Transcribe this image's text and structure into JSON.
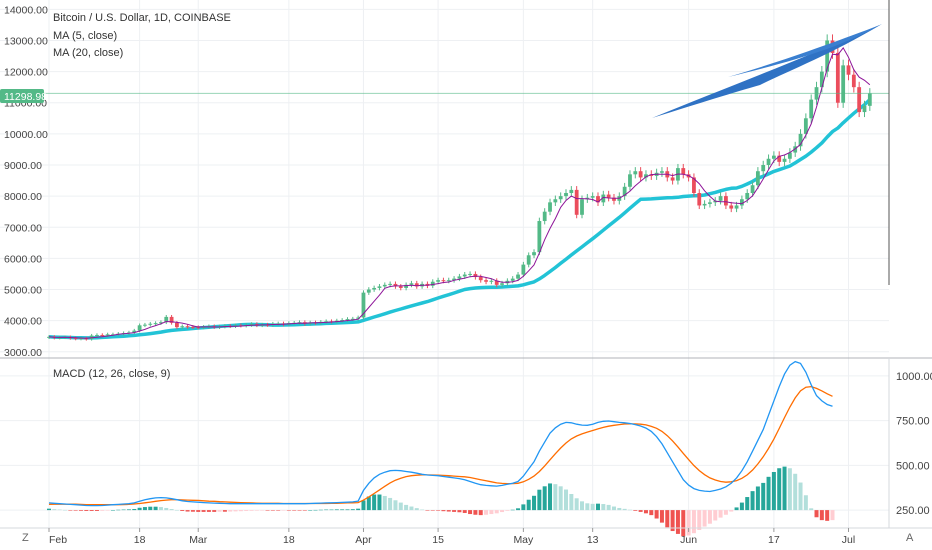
{
  "colors": {
    "up": "#53b987",
    "down": "#eb4d5c",
    "ma5": "#8e1599",
    "ma20": "#22c3d6",
    "macd": "#2196f3",
    "signal": "#ff6d00",
    "hist_up_strong": "#26a69a",
    "hist_up_weak": "#b2dfdb",
    "hist_down_strong": "#ef5350",
    "hist_down_weak": "#ffcdd2",
    "price_line": "#53b987",
    "shape": "#2f72c4"
  },
  "legend": {
    "title": "Bitcoin / U.S. Dollar, 1D, COINBASE",
    "ma5": "MA (5, close)",
    "ma20": "MA (20, close)",
    "macd": "MACD (12, 26, close, 9)"
  },
  "price_tag": "11298.98",
  "corner_left": "Z",
  "corner_right": "A",
  "chart_data": [
    {
      "type": "candlestick",
      "title": "Bitcoin / U.S. Dollar, 1D, COINBASE",
      "ylim": [
        2800,
        14300
      ],
      "ytick_labels": [
        "3000.00",
        "4000.00",
        "5000.00",
        "6000.00",
        "7000.00",
        "8000.00",
        "9000.00",
        "10000.00",
        "11000.00",
        "12000.00",
        "13000.00",
        "14000.00"
      ],
      "ytick_values": [
        3000,
        4000,
        5000,
        6000,
        7000,
        8000,
        9000,
        10000,
        11000,
        12000,
        13000,
        14000
      ],
      "x_labels": [
        "Feb",
        "18",
        "Mar",
        "18",
        "Apr",
        "15",
        "May",
        "13",
        "Jun",
        "17",
        "Jul"
      ],
      "x_label_days": [
        0,
        17,
        28,
        45,
        59,
        73,
        89,
        102,
        120,
        136,
        150
      ],
      "current_price": 11298.98,
      "close": [
        3480,
        3450,
        3460,
        3470,
        3440,
        3420,
        3430,
        3410,
        3520,
        3540,
        3530,
        3560,
        3560,
        3580,
        3600,
        3620,
        3680,
        3850,
        3870,
        3900,
        3920,
        3950,
        4120,
        3930,
        3790,
        3820,
        3800,
        3790,
        3780,
        3800,
        3820,
        3790,
        3810,
        3830,
        3820,
        3850,
        3840,
        3860,
        3890,
        3850,
        3870,
        3860,
        3900,
        3910,
        3880,
        3920,
        3930,
        3950,
        3900,
        3940,
        3930,
        3960,
        3980,
        3970,
        4000,
        4020,
        4050,
        4060,
        4100,
        4900,
        5000,
        5050,
        5100,
        5150,
        5180,
        5100,
        5050,
        5150,
        5200,
        5100,
        5180,
        5120,
        5250,
        5300,
        5280,
        5300,
        5350,
        5420,
        5480,
        5500,
        5400,
        5300,
        5250,
        5280,
        5150,
        5200,
        5280,
        5350,
        5480,
        5800,
        6100,
        6200,
        7200,
        7500,
        7800,
        7900,
        8000,
        8100,
        8200,
        7400,
        7900,
        7950,
        8000,
        7800,
        8050,
        7950,
        7850,
        8000,
        8300,
        8700,
        8800,
        8600,
        8700,
        8650,
        8750,
        8800,
        8600,
        8500,
        8900,
        8700,
        8600,
        8100,
        7700,
        7750,
        7800,
        7850,
        8000,
        7700,
        7600,
        7700,
        7900,
        8100,
        8350,
        8800,
        9000,
        9200,
        9300,
        9100,
        9200,
        9400,
        9600,
        10000,
        10500,
        11100,
        11500,
        12000,
        13000,
        12600,
        11000,
        12200,
        11900,
        11500,
        10700,
        10900,
        11298.98
      ],
      "ma5": [
        3480,
        3465,
        3463,
        3465,
        3460,
        3448,
        3444,
        3436,
        3448,
        3464,
        3480,
        3508,
        3534,
        3562,
        3576,
        3592,
        3616,
        3666,
        3720,
        3786,
        3842,
        3898,
        3972,
        3966,
        3942,
        3922,
        3884,
        3830,
        3796,
        3798,
        3798,
        3796,
        3800,
        3810,
        3814,
        3822,
        3826,
        3840,
        3852,
        3858,
        3864,
        3868,
        3876,
        3878,
        3884,
        3896,
        3908,
        3920,
        3916,
        3928,
        3930,
        3936,
        3942,
        3956,
        3968,
        3986,
        4004,
        4020,
        4046,
        4226,
        4422,
        4622,
        4822,
        5040,
        5096,
        5116,
        5116,
        5126,
        5136,
        5120,
        5136,
        5134,
        5160,
        5190,
        5226,
        5240,
        5296,
        5330,
        5366,
        5410,
        5430,
        5420,
        5386,
        5346,
        5276,
        5236,
        5232,
        5252,
        5292,
        5426,
        5602,
        5786,
        6176,
        6600,
        6960,
        7280,
        7640,
        7860,
        8000,
        7920,
        7920,
        7910,
        7890,
        7810,
        7960,
        7940,
        7930,
        7930,
        8030,
        8160,
        8330,
        8480,
        8620,
        8690,
        8700,
        8700,
        8700,
        8660,
        8710,
        8700,
        8660,
        8560,
        8400,
        8170,
        7990,
        7840,
        7820,
        7820,
        7790,
        7770,
        7760,
        7860,
        8010,
        8270,
        8550,
        8850,
        9130,
        9280,
        9320,
        9400,
        9520,
        9660,
        9960,
        10320,
        10860,
        11480,
        12100,
        12560,
        12540,
        12760,
        12460,
        12060,
        11820,
        11720,
        11580
      ],
      "ma20": [
        3480,
        3470,
        3466,
        3465,
        3460,
        3452,
        3448,
        3445,
        3447,
        3453,
        3461,
        3470,
        3480,
        3490,
        3500,
        3512,
        3525,
        3546,
        3565,
        3585,
        3607,
        3632,
        3663,
        3688,
        3704,
        3719,
        3733,
        3749,
        3763,
        3777,
        3790,
        3802,
        3815,
        3828,
        3841,
        3853,
        3866,
        3876,
        3878,
        3875,
        3872,
        3868,
        3858,
        3857,
        3860,
        3864,
        3869,
        3876,
        3881,
        3888,
        3894,
        3902,
        3910,
        3917,
        3924,
        3933,
        3941,
        3950,
        3960,
        4011,
        4063,
        4117,
        4169,
        4221,
        4274,
        4325,
        4374,
        4424,
        4474,
        4522,
        4567,
        4612,
        4669,
        4726,
        4781,
        4834,
        4889,
        4945,
        5001,
        5029,
        5049,
        5061,
        5069,
        5075,
        5074,
        5081,
        5093,
        5103,
        5117,
        5152,
        5198,
        5243,
        5340,
        5452,
        5578,
        5708,
        5841,
        5974,
        6110,
        6240,
        6369,
        6501,
        6633,
        6766,
        6906,
        7044,
        7182,
        7318,
        7461,
        7612,
        7757,
        7898,
        7905,
        7912,
        7922,
        7937,
        7948,
        7954,
        7961,
        7989,
        8000,
        8010,
        8017,
        8035,
        8078,
        8121,
        8171,
        8216,
        8251,
        8261,
        8316,
        8389,
        8472,
        8577,
        8637,
        8715,
        8793,
        8848,
        8906,
        8968,
        9068,
        9175,
        9285,
        9414,
        9557,
        9711,
        9899,
        10073,
        10185,
        10355,
        10510,
        10661,
        10801,
        10937,
        11100
      ],
      "macd": [
        290,
        288,
        286,
        284,
        282,
        280,
        278,
        276,
        275,
        275,
        276,
        278,
        280,
        282,
        284,
        286,
        290,
        300,
        308,
        314,
        318,
        320,
        318,
        314,
        308,
        302,
        298,
        296,
        294,
        292,
        290,
        289,
        288,
        287,
        286,
        286,
        286,
        286,
        286,
        286,
        286,
        286,
        286,
        286,
        286,
        286,
        286,
        286,
        286,
        287,
        288,
        289,
        290,
        291,
        292,
        293,
        294,
        296,
        300,
        360,
        400,
        430,
        450,
        462,
        470,
        472,
        470,
        466,
        462,
        456,
        450,
        446,
        444,
        442,
        438,
        434,
        430,
        426,
        420,
        410,
        400,
        392,
        388,
        386,
        384,
        388,
        394,
        400,
        410,
        440,
        480,
        520,
        580,
        630,
        680,
        710,
        730,
        740,
        738,
        730,
        725,
        724,
        730,
        740,
        746,
        748,
        744,
        740,
        738,
        734,
        728,
        720,
        708,
        690,
        660,
        620,
        570,
        520,
        470,
        420,
        390,
        370,
        360,
        356,
        354,
        360,
        368,
        380,
        400,
        430,
        470,
        520,
        580,
        640,
        700,
        780,
        860,
        940,
        1010,
        1060,
        1080,
        1070,
        1020,
        950,
        890,
        860,
        840,
        830
      ],
      "signal": [
        282,
        283,
        283,
        283,
        283,
        283,
        282,
        281,
        280,
        280,
        280,
        280,
        280,
        280,
        281,
        282,
        284,
        287,
        291,
        295,
        299,
        303,
        306,
        308,
        308,
        307,
        306,
        305,
        304,
        302,
        300,
        299,
        297,
        296,
        294,
        293,
        292,
        291,
        290,
        289,
        288,
        288,
        288,
        288,
        287,
        287,
        287,
        287,
        287,
        287,
        287,
        287,
        287,
        288,
        288,
        289,
        290,
        291,
        292,
        306,
        324,
        343,
        363,
        383,
        402,
        417,
        428,
        437,
        442,
        445,
        447,
        447,
        446,
        445,
        444,
        442,
        440,
        438,
        436,
        432,
        426,
        420,
        414,
        408,
        402,
        399,
        398,
        398,
        400,
        408,
        422,
        440,
        466,
        497,
        531,
        565,
        597,
        625,
        648,
        664,
        676,
        686,
        695,
        704,
        712,
        719,
        724,
        728,
        731,
        732,
        732,
        730,
        726,
        718,
        707,
        690,
        666,
        637,
        603,
        567,
        532,
        499,
        471,
        448,
        430,
        418,
        410,
        406,
        408,
        415,
        428,
        447,
        474,
        508,
        548,
        594,
        647,
        706,
        767,
        826,
        877,
        916,
        937,
        940,
        930,
        916,
        900,
        886
      ]
    }
  ]
}
